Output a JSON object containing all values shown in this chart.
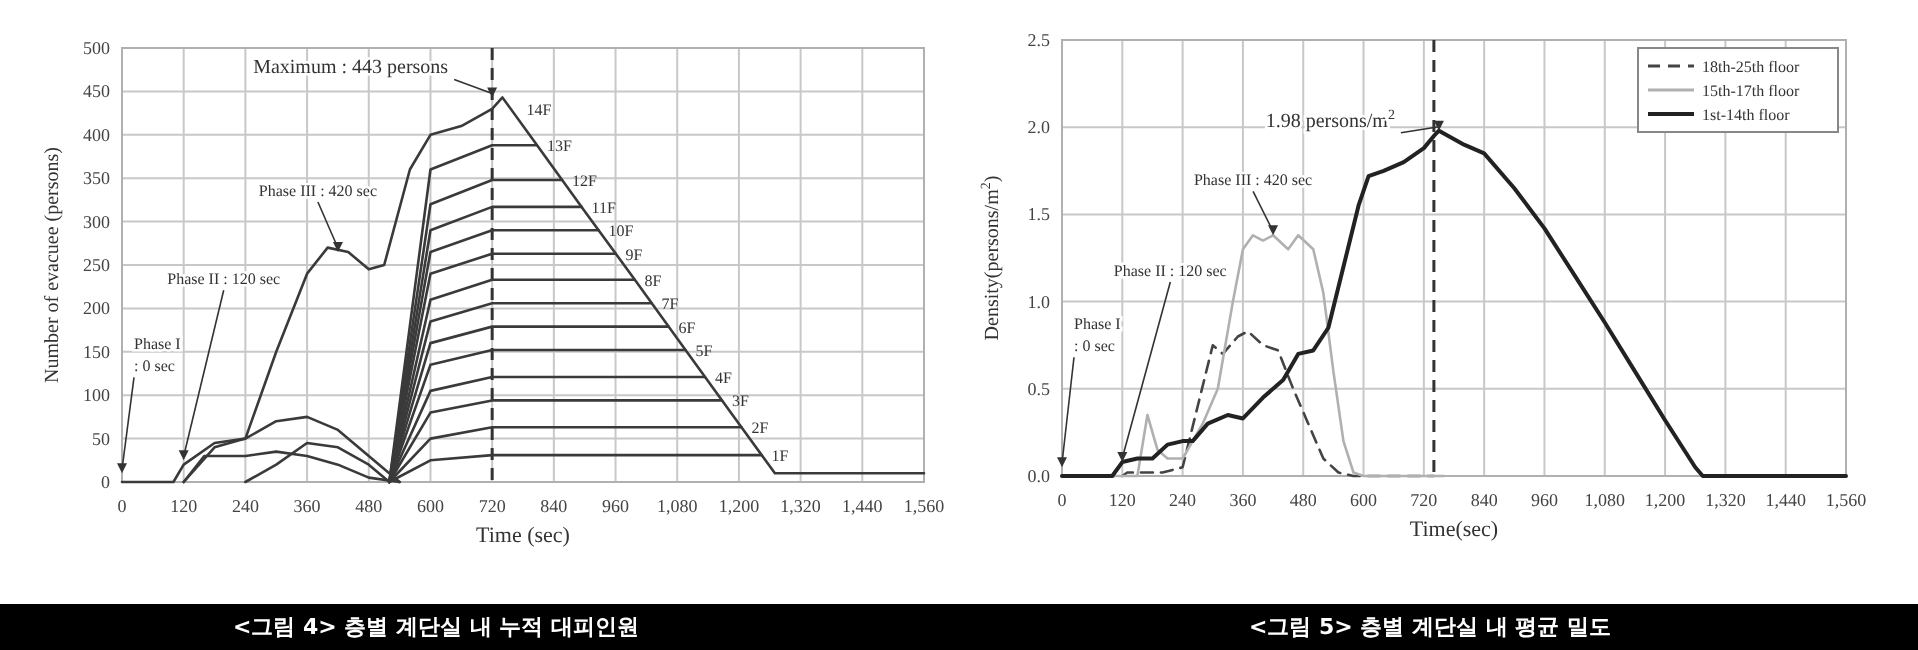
{
  "chart_data": [
    {
      "type": "line",
      "title": "<그림 4> 층별 계단실 내 누적 대피인원",
      "xlabel": "Time (sec)",
      "ylabel": "Number of evacuee (persons)",
      "xlim": [
        0,
        1560
      ],
      "ylim": [
        0,
        500
      ],
      "xticks": [
        0,
        120,
        240,
        360,
        480,
        600,
        720,
        840,
        960,
        {
          "value": 1080,
          "label": "1,080"
        },
        {
          "value": 1200,
          "label": "1,200"
        },
        {
          "value": 1320,
          "label": "1,320"
        },
        {
          "value": 1440,
          "label": "1,440"
        },
        {
          "value": 1560,
          "label": "1,560"
        }
      ],
      "yticks": [
        0,
        50,
        100,
        150,
        200,
        250,
        300,
        350,
        400,
        450,
        500
      ],
      "grid": true,
      "legend": false,
      "marker": "none",
      "line_style": "solid",
      "ref_lines": [
        {
          "axis": "x",
          "value": 720,
          "line_style": "dashed",
          "color": "#333333"
        }
      ],
      "annotations": [
        {
          "text": "Maximum : 443 persons",
          "x": 720,
          "y": 443
        },
        {
          "text": "Phase III : 420 sec",
          "x": 420,
          "y": 265
        },
        {
          "text": "Phase II : 120 sec",
          "x": 120,
          "y": 25
        },
        {
          "text": "Phase I\n: 0 sec",
          "x": 0,
          "y": 10
        }
      ],
      "series": [
        {
          "name": "14F",
          "color": "#3a3a3a",
          "x": [
            0,
            100,
            120,
            180,
            240,
            300,
            360,
            400,
            440,
            480,
            510,
            560,
            600,
            660,
            720,
            740,
            800,
            900,
            1000,
            1100,
            1200,
            1270,
            1560
          ],
          "values": [
            0,
            0,
            20,
            45,
            50,
            150,
            240,
            270,
            265,
            245,
            250,
            360,
            400,
            410,
            430,
            443,
            394,
            312,
            231,
            149,
            67,
            10,
            10
          ]
        },
        {
          "name": "13F",
          "color": "#3a3a3a",
          "x": [
            520,
            600,
            720,
            807
          ],
          "values": [
            0,
            360,
            388,
            388
          ]
        },
        {
          "name": "12F",
          "color": "#3a3a3a",
          "x": [
            520,
            600,
            720,
            856
          ],
          "values": [
            0,
            320,
            348,
            348
          ]
        },
        {
          "name": "11F",
          "color": "#3a3a3a",
          "x": [
            520,
            600,
            720,
            894
          ],
          "values": [
            0,
            290,
            317,
            317
          ]
        },
        {
          "name": "10F",
          "color": "#3a3a3a",
          "x": [
            520,
            600,
            720,
            927
          ],
          "values": [
            0,
            265,
            290,
            290
          ]
        },
        {
          "name": "9F",
          "color": "#3a3a3a",
          "x": [
            520,
            600,
            720,
            960
          ],
          "values": [
            0,
            240,
            263,
            263
          ]
        },
        {
          "name": "8F",
          "color": "#3a3a3a",
          "x": [
            520,
            600,
            720,
            997
          ],
          "values": [
            0,
            210,
            233,
            233
          ]
        },
        {
          "name": "7F",
          "color": "#3a3a3a",
          "x": [
            520,
            600,
            720,
            1030
          ],
          "values": [
            0,
            185,
            206,
            206
          ]
        },
        {
          "name": "6F",
          "color": "#3a3a3a",
          "x": [
            520,
            600,
            720,
            1063
          ],
          "values": [
            0,
            160,
            179,
            179
          ]
        },
        {
          "name": "5F",
          "color": "#3a3a3a",
          "x": [
            520,
            600,
            720,
            1096
          ],
          "values": [
            0,
            135,
            152,
            152
          ]
        },
        {
          "name": "4F",
          "color": "#3a3a3a",
          "x": [
            520,
            600,
            720,
            1134
          ],
          "values": [
            0,
            105,
            121,
            121
          ]
        },
        {
          "name": "3F",
          "color": "#3a3a3a",
          "x": [
            520,
            600,
            720,
            1167
          ],
          "values": [
            0,
            80,
            94,
            94
          ]
        },
        {
          "name": "2F",
          "color": "#3a3a3a",
          "x": [
            520,
            600,
            720,
            1205
          ],
          "values": [
            0,
            50,
            63,
            63
          ]
        },
        {
          "name": "1F",
          "color": "#3a3a3a",
          "x": [
            520,
            600,
            720,
            1244
          ],
          "values": [
            0,
            25,
            31,
            31
          ]
        },
        {
          "color": "#3a3a3a",
          "x": [
            120,
            160,
            240,
            300,
            360,
            420,
            480,
            540
          ],
          "values": [
            0,
            30,
            30,
            35,
            30,
            20,
            5,
            0
          ]
        },
        {
          "color": "#3a3a3a",
          "x": [
            120,
            180,
            240,
            300,
            360,
            420,
            480,
            540
          ],
          "values": [
            0,
            40,
            50,
            70,
            75,
            60,
            30,
            0
          ]
        },
        {
          "color": "#3a3a3a",
          "x": [
            240,
            300,
            360,
            420,
            480,
            520
          ],
          "values": [
            0,
            20,
            45,
            40,
            20,
            0
          ]
        }
      ]
    },
    {
      "type": "line",
      "title": "<그림 5> 층별 계단실 내 평균 밀도",
      "xlabel": "Time(sec)",
      "ylabel": "Density(persons/m$^{2}$)",
      "xlim": [
        0,
        1560
      ],
      "ylim": [
        0,
        2.5
      ],
      "xticks": [
        0,
        120,
        240,
        360,
        480,
        600,
        720,
        840,
        960,
        {
          "value": 1080,
          "label": "1,080"
        },
        {
          "value": 1200,
          "label": "1,200"
        },
        {
          "value": 1320,
          "label": "1,320"
        },
        {
          "value": 1440,
          "label": "1,440"
        },
        {
          "value": 1560,
          "label": "1,560"
        }
      ],
      "yticks": [
        {
          "value": 0,
          "label": "0.0"
        },
        {
          "value": 0.5,
          "label": "0.5"
        },
        {
          "value": 1,
          "label": "1.0"
        },
        {
          "value": 1.5,
          "label": "1.5"
        },
        {
          "value": 2,
          "label": "2.0"
        },
        {
          "value": 2.5,
          "label": "2.5"
        }
      ],
      "grid": true,
      "legend": "top right",
      "marker": "none",
      "ref_lines": [
        {
          "axis": "x",
          "value": 740,
          "line_style": "dashed",
          "color": "#333333"
        }
      ],
      "annotations": [
        {
          "text": "1.98 persons/m$^{2}$",
          "x": 750,
          "y": 1.98
        },
        {
          "text": "Phase III : 420 sec",
          "x": 420,
          "y": 1.38
        },
        {
          "text": "Phase II : 120 sec",
          "x": 120,
          "y": 0.08
        },
        {
          "text": "Phase I\n: 0 sec",
          "x": 0,
          "y": 0.05
        }
      ],
      "series": [
        {
          "name": "18th-25th floor",
          "color": "#444444",
          "line_style": "dashed",
          "x": [
            0,
            120,
            130,
            200,
            240,
            270,
            300,
            320,
            350,
            370,
            400,
            430,
            460,
            490,
            520,
            550,
            580,
            740
          ],
          "values": [
            0,
            0,
            0.02,
            0.02,
            0.05,
            0.4,
            0.75,
            0.7,
            0.8,
            0.83,
            0.75,
            0.72,
            0.5,
            0.3,
            0.1,
            0.02,
            0,
            0
          ]
        },
        {
          "name": "15th-17th floor",
          "color": "#b0b0b0",
          "line_style": "solid",
          "x": [
            0,
            150,
            170,
            190,
            210,
            240,
            280,
            310,
            340,
            360,
            380,
            400,
            420,
            450,
            470,
            500,
            520,
            540,
            560,
            580,
            600,
            760
          ],
          "values": [
            0,
            0,
            0.35,
            0.15,
            0.1,
            0.1,
            0.3,
            0.5,
            1.0,
            1.3,
            1.38,
            1.35,
            1.38,
            1.3,
            1.38,
            1.3,
            1.05,
            0.6,
            0.2,
            0.02,
            0,
            0
          ]
        },
        {
          "name": "1st-14th floor",
          "color": "#222222",
          "line_style": "solid",
          "x": [
            0,
            100,
            120,
            150,
            180,
            210,
            240,
            260,
            290,
            330,
            360,
            400,
            440,
            470,
            500,
            530,
            560,
            590,
            610,
            640,
            680,
            720,
            740,
            750,
            800,
            840,
            900,
            960,
            1020,
            1080,
            1140,
            1200,
            1260,
            1275,
            1560
          ],
          "values": [
            0,
            0,
            0.08,
            0.1,
            0.1,
            0.18,
            0.2,
            0.2,
            0.3,
            0.35,
            0.33,
            0.45,
            0.55,
            0.7,
            0.72,
            0.85,
            1.2,
            1.55,
            1.72,
            1.75,
            1.8,
            1.88,
            1.95,
            1.98,
            1.9,
            1.85,
            1.65,
            1.42,
            1.15,
            0.88,
            0.6,
            0.32,
            0.05,
            0,
            0
          ]
        }
      ]
    }
  ]
}
